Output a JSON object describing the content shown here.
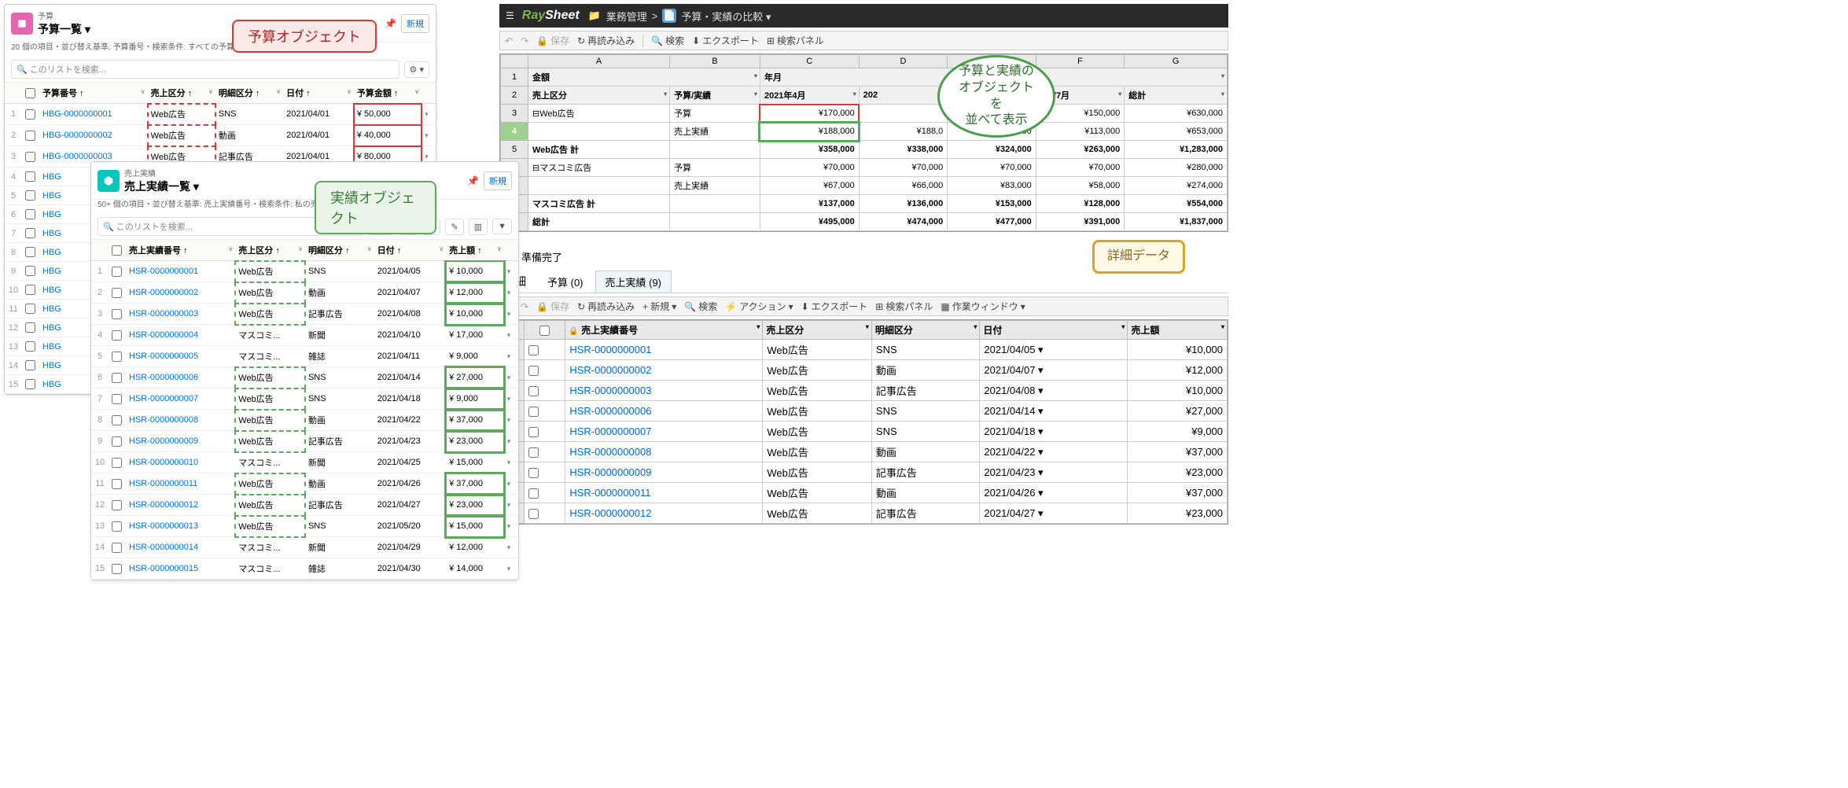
{
  "callouts": {
    "budget_obj": "予算オブジェクト",
    "actual_obj": "実績オブジェクト",
    "compare": "予算と実績の\nオブジェクトを\n並べて表示",
    "detail": "詳細データ"
  },
  "budget_panel": {
    "subtitle": "予算",
    "title": "予算一覧 ▾",
    "desc": "20 個の項目・並び替え基準: 予算番号・検索条件: すべての予算・1 分前 に更新されました",
    "search_ph": "このリストを検索...",
    "new_btn": "新規",
    "cols": [
      "予算番号",
      "売上区分",
      "明細区分",
      "日付",
      "予算金額"
    ],
    "rows": [
      {
        "i": 1,
        "no": "HBG-0000000001",
        "cat": "Web広告",
        "sub": "SNS",
        "date": "2021/04/01",
        "amt": "¥ 50,000"
      },
      {
        "i": 2,
        "no": "HBG-0000000002",
        "cat": "Web広告",
        "sub": "動画",
        "date": "2021/04/01",
        "amt": "¥ 40,000"
      },
      {
        "i": 3,
        "no": "HBG-0000000003",
        "cat": "Web広告",
        "sub": "記事広告",
        "date": "2021/04/01",
        "amt": "¥ 80,000"
      },
      {
        "i": 4,
        "no": "HBG"
      },
      {
        "i": 5,
        "no": "HBG"
      },
      {
        "i": 6,
        "no": "HBG"
      },
      {
        "i": 7,
        "no": "HBG"
      },
      {
        "i": 8,
        "no": "HBG"
      },
      {
        "i": 9,
        "no": "HBG"
      },
      {
        "i": 10,
        "no": "HBG"
      },
      {
        "i": 11,
        "no": "HBG"
      },
      {
        "i": 12,
        "no": "HBG"
      },
      {
        "i": 13,
        "no": "HBG"
      },
      {
        "i": 14,
        "no": "HBG"
      },
      {
        "i": 15,
        "no": "HBG"
      }
    ]
  },
  "actual_panel": {
    "subtitle": "売上実績",
    "title": "売上実績一覧 ▾",
    "desc": "50+ 個の項目・並び替え基準: 売上実績番号・検索条件: 私の売上実績・1分前 に更新されました",
    "search_ph": "このリストを検索...",
    "new_btn": "新規",
    "cols": [
      "売上実績番号",
      "売上区分",
      "明細区分",
      "日付",
      "売上額"
    ],
    "rows": [
      {
        "i": 1,
        "no": "HSR-0000000001",
        "cat": "Web広告",
        "sub": "SNS",
        "date": "2021/04/05",
        "amt": "¥ 10,000",
        "hi": 1
      },
      {
        "i": 2,
        "no": "HSR-0000000002",
        "cat": "Web広告",
        "sub": "動画",
        "date": "2021/04/07",
        "amt": "¥ 12,000",
        "hi": 1
      },
      {
        "i": 3,
        "no": "HSR-0000000003",
        "cat": "Web広告",
        "sub": "記事広告",
        "date": "2021/04/08",
        "amt": "¥ 10,000",
        "hi": 1
      },
      {
        "i": 4,
        "no": "HSR-0000000004",
        "cat": "マスコミ...",
        "sub": "新聞",
        "date": "2021/04/10",
        "amt": "¥ 17,000"
      },
      {
        "i": 5,
        "no": "HSR-0000000005",
        "cat": "マスコミ...",
        "sub": "雑誌",
        "date": "2021/04/11",
        "amt": "¥ 9,000"
      },
      {
        "i": 6,
        "no": "HSR-0000000006",
        "cat": "Web広告",
        "sub": "SNS",
        "date": "2021/04/14",
        "amt": "¥ 27,000",
        "hi": 1
      },
      {
        "i": 7,
        "no": "HSR-0000000007",
        "cat": "Web広告",
        "sub": "SNS",
        "date": "2021/04/18",
        "amt": "¥ 9,000",
        "hi": 1
      },
      {
        "i": 8,
        "no": "HSR-0000000008",
        "cat": "Web広告",
        "sub": "動画",
        "date": "2021/04/22",
        "amt": "¥ 37,000",
        "hi": 1
      },
      {
        "i": 9,
        "no": "HSR-0000000009",
        "cat": "Web広告",
        "sub": "記事広告",
        "date": "2021/04/23",
        "amt": "¥ 23,000",
        "hi": 1
      },
      {
        "i": 10,
        "no": "HSR-0000000010",
        "cat": "マスコミ...",
        "sub": "新聞",
        "date": "2021/04/25",
        "amt": "¥ 15,000"
      },
      {
        "i": 11,
        "no": "HSR-0000000011",
        "cat": "Web広告",
        "sub": "動画",
        "date": "2021/04/26",
        "amt": "¥ 37,000",
        "hi": 1
      },
      {
        "i": 12,
        "no": "HSR-0000000012",
        "cat": "Web広告",
        "sub": "記事広告",
        "date": "2021/04/27",
        "amt": "¥ 23,000",
        "hi": 1
      },
      {
        "i": 13,
        "no": "HSR-0000000013",
        "cat": "Web広告",
        "sub": "SNS",
        "date": "2021/05/20",
        "amt": "¥ 15,000",
        "hi": 1
      },
      {
        "i": 14,
        "no": "HSR-0000000014",
        "cat": "マスコミ...",
        "sub": "新聞",
        "date": "2021/04/29",
        "amt": "¥ 12,000"
      },
      {
        "i": 15,
        "no": "HSR-0000000015",
        "cat": "マスコミ...",
        "sub": "雑誌",
        "date": "2021/04/30",
        "amt": "¥ 14,000"
      }
    ]
  },
  "raysheet": {
    "logo_a": "Ray",
    "logo_b": "Sheet",
    "bc_folder": "業務管理",
    "bc_page": "予算・実績の比較 ▾",
    "toolbar1": {
      "undo": "↶",
      "redo": "↷",
      "save": "保存",
      "reload": "再読み込み",
      "search": "検索",
      "export": "エクスポート",
      "panel": "検索パネル"
    },
    "grid": {
      "cols": [
        "",
        "A",
        "B",
        "C",
        "D",
        "E",
        "F",
        "G"
      ],
      "row1": {
        "a": "金額",
        "c": "年月"
      },
      "row2": {
        "a": "売上区分",
        "b": "予算/実績",
        "c": "2021年4月",
        "d": "202",
        "f": "1年/7月",
        "g": "総計"
      },
      "rows": [
        {
          "n": 3,
          "a": "⊟Web広告",
          "b": "予算",
          "c": "¥170,000",
          "red": 1,
          "f": "¥150,000",
          "g": "¥630,000"
        },
        {
          "n": 4,
          "a": "",
          "b": "売上実績",
          "c": "¥188,000",
          "green": 1,
          "d": "¥188,0",
          "e": ",000",
          "f": "¥113,000",
          "g": "¥653,000",
          "sel": 1
        },
        {
          "n": 5,
          "a": "Web広告 計",
          "c": "¥358,000",
          "d": "¥338,000",
          "e": "¥324,000",
          "f": "¥263,000",
          "g": "¥1,283,000",
          "bold": 1
        },
        {
          "n": 6,
          "a": "⊟マスコミ広告",
          "b": "予算",
          "c": "¥70,000",
          "d": "¥70,000",
          "e": "¥70,000",
          "f": "¥70,000",
          "g": "¥280,000"
        },
        {
          "n": 7,
          "a": "",
          "b": "売上実績",
          "c": "¥67,000",
          "d": "¥66,000",
          "e": "¥83,000",
          "f": "¥58,000",
          "g": "¥274,000"
        },
        {
          "n": 8,
          "a": "マスコミ広告 計",
          "c": "¥137,000",
          "d": "¥136,000",
          "e": "¥153,000",
          "f": "¥128,000",
          "g": "¥554,000",
          "bold": 1
        },
        {
          "n": 9,
          "a": "総計",
          "c": "¥495,000",
          "d": "¥474,000",
          "e": "¥477,000",
          "f": "¥391,000",
          "g": "¥1,837,000",
          "bold": 1
        }
      ]
    },
    "status": "準備完了",
    "tabs": {
      "label": "詳細",
      "t1": "予算 (0)",
      "t2": "売上実績 (9)"
    },
    "toolbar2": {
      "save": "保存",
      "reload": "再読み込み",
      "new": "新規",
      "search": "検索",
      "action": "アクション",
      "export": "エクスポート",
      "panel": "検索パネル",
      "win": "作業ウィンドウ"
    },
    "detail": {
      "cols": [
        "売上実績番号",
        "売上区分",
        "明細区分",
        "日付",
        "売上額"
      ],
      "rows": [
        {
          "i": 1,
          "no": "HSR-0000000001",
          "cat": "Web広告",
          "sub": "SNS",
          "date": "2021/04/05",
          "amt": "¥10,000"
        },
        {
          "i": 2,
          "no": "HSR-0000000002",
          "cat": "Web広告",
          "sub": "動画",
          "date": "2021/04/07",
          "amt": "¥12,000"
        },
        {
          "i": 3,
          "no": "HSR-0000000003",
          "cat": "Web広告",
          "sub": "記事広告",
          "date": "2021/04/08",
          "amt": "¥10,000"
        },
        {
          "i": 4,
          "no": "HSR-0000000006",
          "cat": "Web広告",
          "sub": "SNS",
          "date": "2021/04/14",
          "amt": "¥27,000"
        },
        {
          "i": 5,
          "no": "HSR-0000000007",
          "cat": "Web広告",
          "sub": "SNS",
          "date": "2021/04/18",
          "amt": "¥9,000"
        },
        {
          "i": 6,
          "no": "HSR-0000000008",
          "cat": "Web広告",
          "sub": "動画",
          "date": "2021/04/22",
          "amt": "¥37,000"
        },
        {
          "i": 7,
          "no": "HSR-0000000009",
          "cat": "Web広告",
          "sub": "記事広告",
          "date": "2021/04/23",
          "amt": "¥23,000"
        },
        {
          "i": 8,
          "no": "HSR-0000000011",
          "cat": "Web広告",
          "sub": "動画",
          "date": "2021/04/26",
          "amt": "¥37,000"
        },
        {
          "i": 9,
          "no": "HSR-0000000012",
          "cat": "Web広告",
          "sub": "記事広告",
          "date": "2021/04/27",
          "amt": "¥23,000"
        }
      ]
    }
  }
}
